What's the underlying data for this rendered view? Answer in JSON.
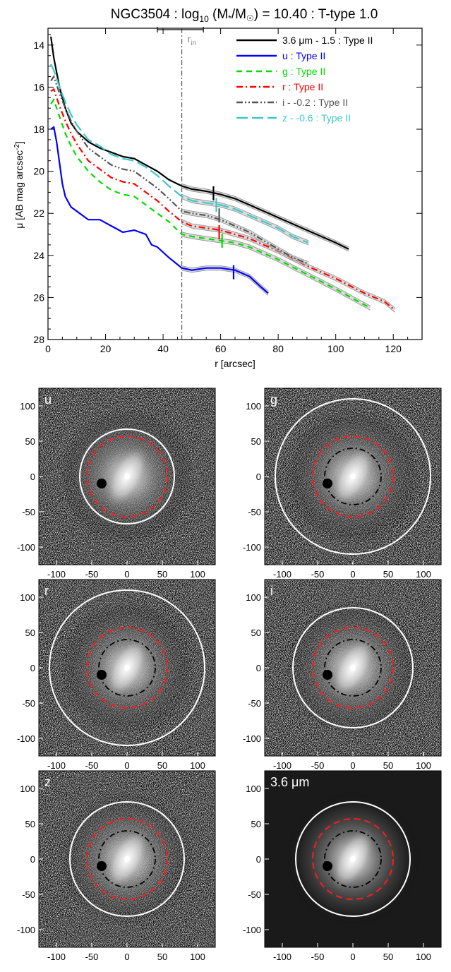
{
  "title_parts": {
    "pre": "NGC3504 : log",
    "sub": "10",
    "mid": " (M",
    "star": "*",
    "slash": "/M",
    "sun": "☉",
    "post": ") = 10.40 : T-type 1.0"
  },
  "chart_data": [
    {
      "type": "line",
      "xlabel": "r [arcsec]",
      "ylabel": "μ [AB mag arcsec⁻²]",
      "xlim": [
        0,
        130
      ],
      "ylim": [
        28,
        13.2
      ],
      "y_inverted": true,
      "xticks": [
        "0",
        "20",
        "40",
        "60",
        "80",
        "100",
        "120"
      ],
      "yticks": [
        "14",
        "16",
        "18",
        "20",
        "22",
        "24",
        "26",
        "28"
      ],
      "r_in": 46.5,
      "r_in_label": "r_in",
      "r_in_range": [
        38,
        54
      ],
      "legend_position": "top-right",
      "series": [
        {
          "name": "3.6 μm - 1.5 : Type II",
          "color": "#000000",
          "dash": "",
          "x": [
            1,
            2,
            4,
            6,
            8,
            10,
            14,
            18,
            22,
            26,
            30,
            34,
            38,
            42,
            46.5,
            50,
            55,
            60,
            65,
            70,
            75,
            80,
            85,
            90,
            95,
            100,
            104.5
          ],
          "y": [
            13.6,
            14.6,
            16.0,
            17.0,
            17.7,
            18.1,
            18.6,
            18.9,
            19.1,
            19.3,
            19.4,
            19.7,
            20.0,
            20.4,
            20.7,
            20.85,
            20.95,
            21.1,
            21.3,
            21.6,
            21.9,
            22.2,
            22.5,
            22.8,
            23.1,
            23.4,
            23.7
          ],
          "break_r": 57.5,
          "break_mu": 21.05
        },
        {
          "name": "u : Type II",
          "color": "#0000ff",
          "dash": "",
          "x": [
            1,
            2,
            3,
            4,
            5,
            6,
            8,
            10,
            14,
            18,
            22,
            26,
            30,
            34,
            36,
            38,
            42,
            46.5,
            50,
            55,
            60,
            65,
            70,
            74,
            76.5
          ],
          "y": [
            18.0,
            17.9,
            18.6,
            19.6,
            20.6,
            21.2,
            21.7,
            21.9,
            22.3,
            22.3,
            22.6,
            22.9,
            22.8,
            23.0,
            23.5,
            23.6,
            24.1,
            24.6,
            24.7,
            24.6,
            24.6,
            24.7,
            25.0,
            25.5,
            25.8
          ],
          "break_r": 64.5,
          "break_mu": 24.8
        },
        {
          "name": "g : Type II",
          "color": "#00dd00",
          "dash": "8,6",
          "x": [
            1,
            2,
            4,
            6,
            8,
            10,
            14,
            18,
            22,
            26,
            30,
            32,
            35,
            38,
            42,
            46.5,
            50,
            55,
            60,
            65,
            70,
            80,
            90,
            100,
            108,
            112
          ],
          "y": [
            16.8,
            16.6,
            17.4,
            18.2,
            18.8,
            19.3,
            20.0,
            20.5,
            20.9,
            21.1,
            21.2,
            21.4,
            21.7,
            22.0,
            22.4,
            23.0,
            23.1,
            23.2,
            23.3,
            23.4,
            23.6,
            24.2,
            24.9,
            25.6,
            26.2,
            26.5
          ],
          "break_r": 60.5,
          "break_mu": 23.3
        },
        {
          "name": "r : Type II",
          "color": "#ff0000",
          "dash": "9,4,2,4",
          "x": [
            1,
            2,
            4,
            6,
            8,
            10,
            14,
            18,
            22,
            26,
            30,
            32,
            35,
            38,
            42,
            46.5,
            50,
            55,
            60,
            65,
            70,
            80,
            90,
            100,
            110,
            117,
            120.5
          ],
          "y": [
            16.2,
            16.1,
            16.9,
            17.6,
            18.2,
            18.7,
            19.5,
            19.9,
            20.3,
            20.5,
            20.6,
            20.8,
            21.1,
            21.4,
            21.9,
            22.4,
            22.6,
            22.7,
            22.8,
            23.0,
            23.2,
            23.8,
            24.5,
            25.1,
            25.8,
            26.2,
            26.6
          ],
          "break_r": 59.5,
          "break_mu": 22.9
        },
        {
          "name": "i - -0.2 : Type II",
          "color": "#555555",
          "dash": "9,3,2,3,2,3",
          "x": [
            1,
            2,
            4,
            6,
            8,
            10,
            14,
            18,
            22,
            26,
            30,
            32,
            35,
            38,
            42,
            46.5,
            50,
            55,
            60,
            65,
            70,
            75,
            80,
            85,
            90.5
          ],
          "y": [
            15.7,
            15.5,
            16.3,
            17.0,
            17.6,
            18.1,
            18.9,
            19.3,
            19.7,
            19.9,
            20.0,
            20.2,
            20.5,
            20.8,
            21.3,
            21.9,
            22.0,
            22.1,
            22.3,
            22.6,
            22.9,
            23.3,
            23.7,
            24.1,
            24.4
          ],
          "break_r": 59.5,
          "break_mu": 22.1
        },
        {
          "name": "z - -0.6 : Type II",
          "color": "#3cc8c8",
          "dash": "16,6",
          "x": [
            1,
            2,
            4,
            6,
            8,
            10,
            14,
            18,
            22,
            26,
            30,
            34,
            38,
            42,
            46.5,
            50,
            55,
            60,
            65,
            70,
            75,
            80,
            85,
            90.5
          ],
          "y": [
            14.9,
            15.2,
            16.0,
            16.7,
            17.3,
            17.8,
            18.5,
            18.8,
            19.2,
            19.4,
            19.5,
            19.8,
            20.2,
            20.7,
            21.2,
            21.4,
            21.5,
            21.6,
            21.8,
            22.1,
            22.4,
            22.7,
            23.1,
            23.4
          ],
          "break_r": 58.5,
          "break_mu": 21.6
        }
      ]
    }
  ],
  "image_panels": {
    "tick_labels": [
      "-100",
      "-50",
      "0",
      "50",
      "100"
    ],
    "axis_range": [
      -125,
      125
    ],
    "panels": [
      {
        "label": "u",
        "bg": "noise",
        "outer_r": 67,
        "red_r": 57,
        "inner_r": 0
      },
      {
        "label": "g",
        "bg": "noise",
        "outer_r": 110,
        "red_r": 57,
        "inner_r": 40
      },
      {
        "label": "r",
        "bg": "noise",
        "outer_r": 110,
        "red_r": 57,
        "inner_r": 40
      },
      {
        "label": "i",
        "bg": "noise",
        "outer_r": 85,
        "red_r": 57,
        "inner_r": 40
      },
      {
        "label": "z",
        "bg": "noise",
        "outer_r": 81,
        "red_r": 57,
        "inner_r": 40
      },
      {
        "label": "3.6 μm",
        "bg": "dark",
        "outer_r": 81,
        "red_r": 57,
        "inner_r": 40
      }
    ]
  },
  "colors": {
    "white_circle": "#ffffff",
    "red_circle": "#ff1a1a",
    "black_circle": "#000000"
  }
}
